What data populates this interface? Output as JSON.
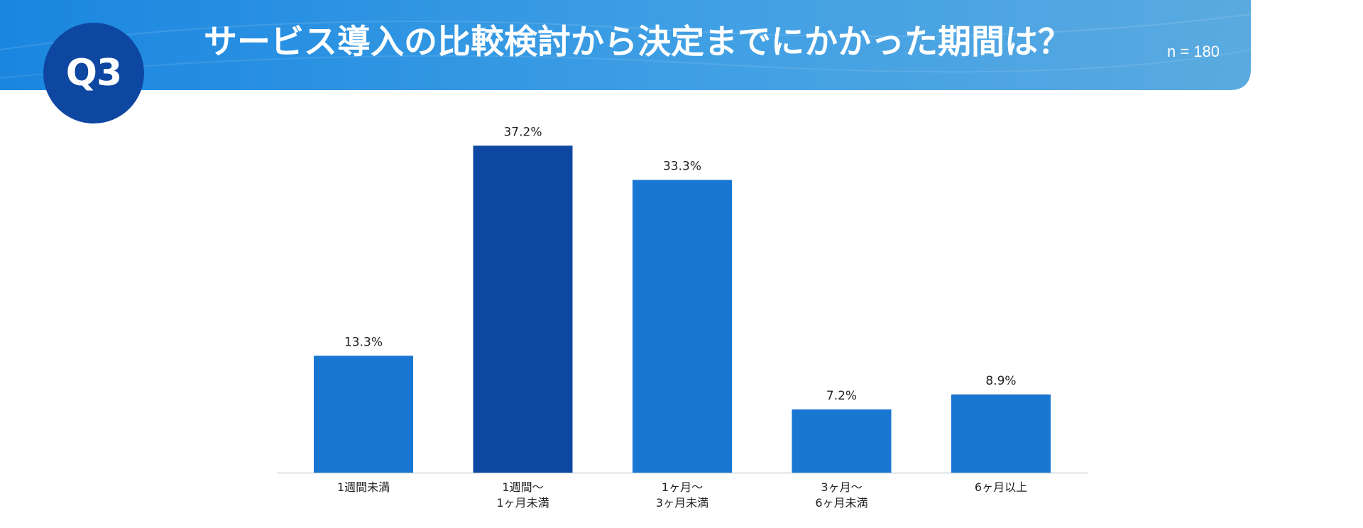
{
  "question": {
    "badge": "Q3",
    "title": "サービス導入の比較検討から決定までにかかった期間は？",
    "sample_size": "n = 180"
  },
  "colors": {
    "header_gradient_start": "#1e88e5",
    "header_gradient_end": "#64b5f6",
    "badge": "#0d47a1",
    "bar": "#1976d2",
    "bar_highlight": "#0d47a1",
    "baseline": "#cfd8dc"
  },
  "chart_data": {
    "type": "bar",
    "categories": [
      [
        "1週間未満"
      ],
      [
        "1週間～",
        "1ヶ月未満"
      ],
      [
        "1ヶ月～",
        "3ヶ月未満"
      ],
      [
        "3ヶ月～",
        "6ヶ月未満"
      ],
      [
        "6ヶ月以上"
      ]
    ],
    "values": [
      13.3,
      37.2,
      33.3,
      7.2,
      8.9
    ],
    "value_labels": [
      "13.3%",
      "37.2%",
      "33.3%",
      "7.2%",
      "8.9%"
    ],
    "highlight_index": 1,
    "ylim": [
      0,
      41.5
    ],
    "grid": false,
    "legend": "none"
  }
}
